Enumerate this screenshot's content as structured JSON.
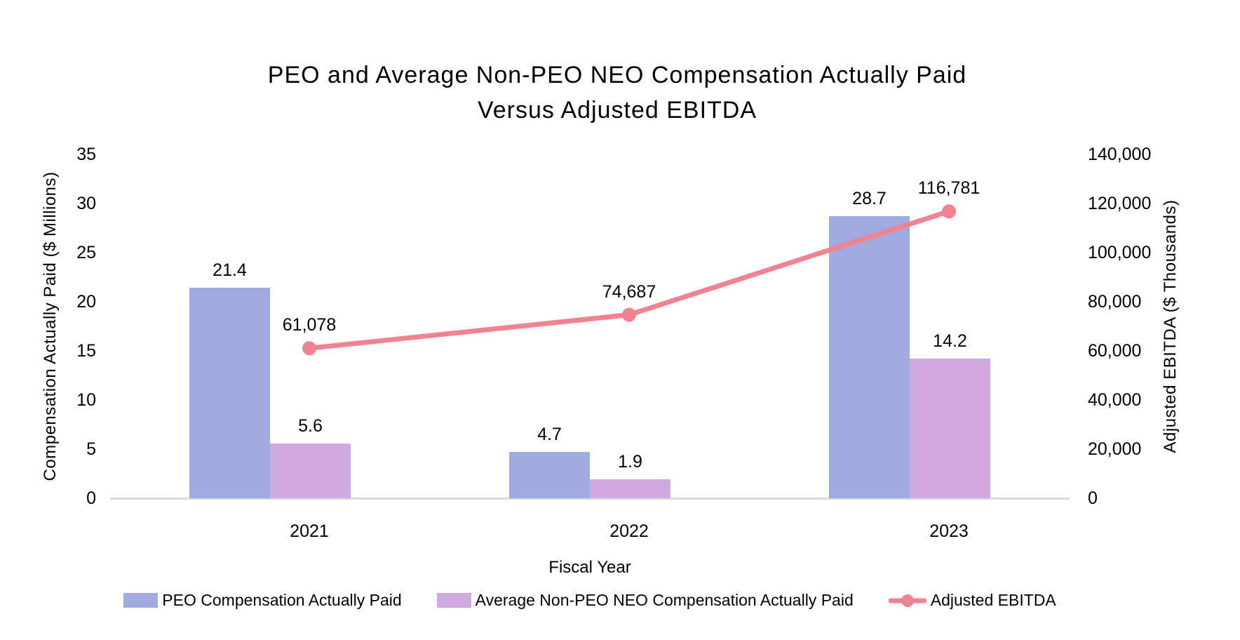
{
  "title": {
    "line1": "PEO and Average Non-PEO NEO Compensation Actually Paid",
    "line2": "Versus Adjusted EBITDA"
  },
  "axes": {
    "left": {
      "title": "Compensation Actually Paid ($ Millions)",
      "ticks": [
        "0",
        "5",
        "10",
        "15",
        "20",
        "25",
        "30",
        "35"
      ]
    },
    "right": {
      "title": "Adjusted EBITDA ($ Thousands)",
      "ticks": [
        "0",
        "20,000",
        "40,000",
        "60,000",
        "80,000",
        "100,000",
        "120,000",
        "140,000"
      ]
    },
    "x": {
      "title": "Fiscal Year",
      "categories": [
        "2021",
        "2022",
        "2023"
      ]
    }
  },
  "colors": {
    "peo_bar": "#A1AADE",
    "non_peo_bar": "#CFA9E0",
    "ebitda_line": "#F0838F",
    "axis_line": "#D9D9D9",
    "text": "#000000"
  },
  "chart_data": {
    "type": "combo_bar_line",
    "title": "PEO and Average Non-PEO NEO Compensation Actually Paid Versus Adjusted EBITDA",
    "categories": [
      "2021",
      "2022",
      "2023"
    ],
    "series": [
      {
        "name": "PEO Compensation Actually Paid",
        "slug": "peo-compensation",
        "type": "bar",
        "axis": "left",
        "color": "#A1AADE",
        "values": [
          21.4,
          4.7,
          28.7
        ],
        "labels": [
          "21.4",
          "4.7",
          "28.7"
        ]
      },
      {
        "name": "Average Non-PEO NEO Compensation Actually Paid",
        "slug": "non-peo-neo-compensation",
        "type": "bar",
        "axis": "left",
        "color": "#CFA9E0",
        "values": [
          5.6,
          1.9,
          14.2
        ],
        "labels": [
          "5.6",
          "1.9",
          "14.2"
        ]
      },
      {
        "name": "Adjusted EBITDA",
        "slug": "adjusted-ebitda",
        "type": "line",
        "axis": "right",
        "color": "#F0838F",
        "values": [
          61078,
          74687,
          116781
        ],
        "labels": [
          "61,078",
          "74,687",
          "116,781"
        ]
      }
    ],
    "xlabel": "Fiscal Year",
    "ylabel_left": "Compensation Actually Paid ($ Millions)",
    "ylabel_right": "Adjusted EBITDA ($ Thousands)",
    "ylim_left": [
      0,
      35
    ],
    "ylim_right": [
      0,
      140000
    ],
    "grid": false,
    "legend_position": "bottom",
    "legend": [
      "PEO Compensation Actually Paid",
      "Average Non-PEO NEO Compensation Actually Paid",
      "Adjusted EBITDA"
    ]
  }
}
